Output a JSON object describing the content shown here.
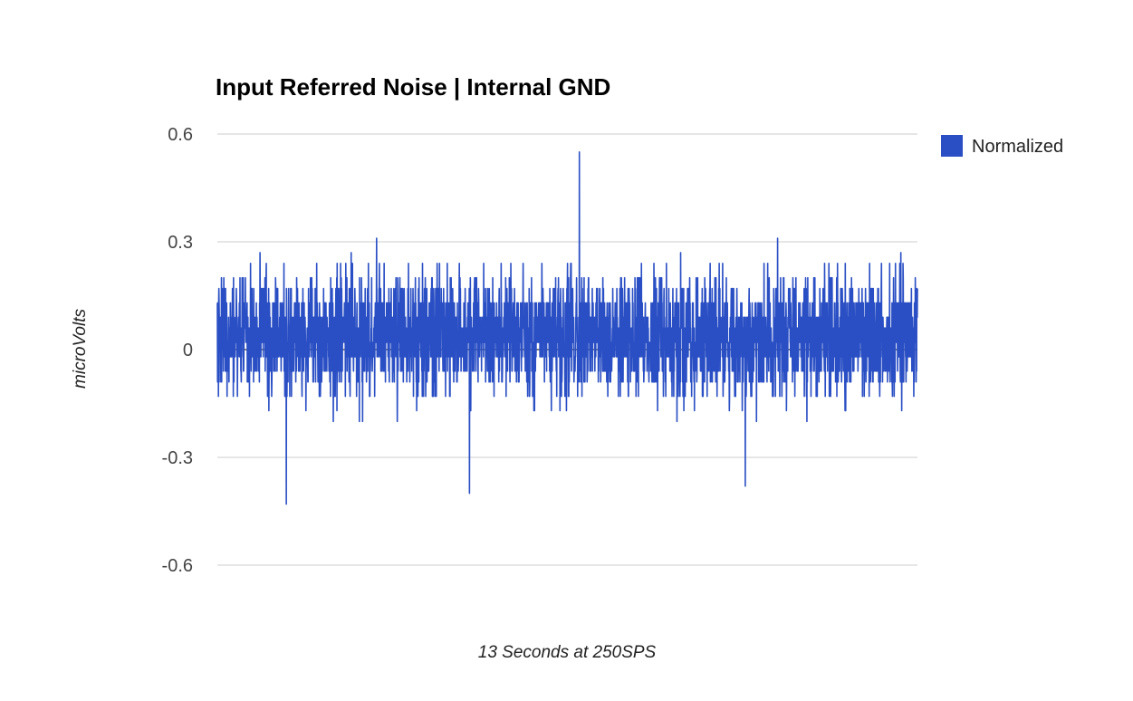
{
  "chart_data": {
    "type": "line",
    "title": "Input Referred Noise | Internal GND",
    "xlabel": "13 Seconds at 250SPS",
    "ylabel": "microVolts",
    "ylim": [
      -0.6,
      0.6
    ],
    "yticks": [
      0.6,
      0.3,
      0,
      -0.3,
      -0.6
    ],
    "ytick_labels": [
      "0.6",
      "0.3",
      "0",
      "-0.3",
      "-0.6"
    ],
    "grid": true,
    "legend_position": "right",
    "series": [
      {
        "name": "Normalized",
        "color": "#2a4fc4",
        "x_start": 0,
        "x_end": 3250,
        "sample_count": 3250,
        "value_levels": [
          -0.43,
          -0.4,
          -0.38,
          -0.34,
          -0.31,
          -0.27,
          -0.24,
          -0.2,
          -0.17,
          -0.13,
          -0.09,
          -0.06,
          -0.02,
          0.02,
          0.06,
          0.09,
          0.13,
          0.17,
          0.2,
          0.24,
          0.27,
          0.31,
          0.34,
          0.38,
          0.42,
          0.45,
          0.55
        ],
        "peak_max": 0.55,
        "peak_min": -0.43,
        "center": 0.04
      }
    ]
  }
}
